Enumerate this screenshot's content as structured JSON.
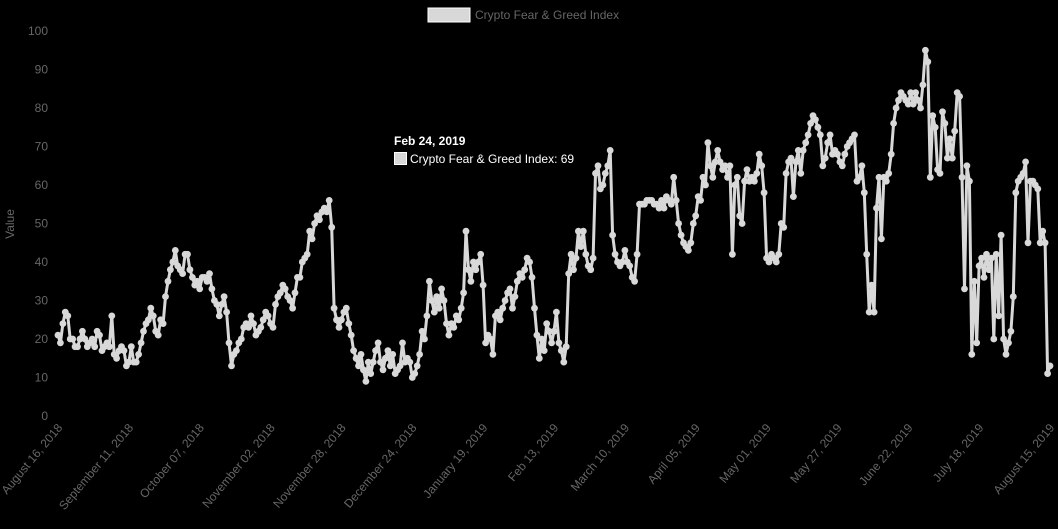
{
  "chart_data": {
    "type": "line",
    "title": "",
    "xlabel": "",
    "ylabel": "Value",
    "ylim": [
      0,
      100
    ],
    "yticks": [
      0,
      10,
      20,
      30,
      40,
      50,
      60,
      70,
      80,
      90,
      100
    ],
    "x_tick_labels": [
      "August 16, 2018",
      "September 11, 2018",
      "October 07, 2018",
      "November 02, 2018",
      "November 28, 2018",
      "December 24, 2018",
      "January 19, 2019",
      "Feb 13, 2019",
      "March 10, 2019",
      "April 05, 2019",
      "May 01, 2019",
      "May 27, 2019",
      "June 22, 2019",
      "July 18, 2019",
      "August 15, 2019"
    ],
    "legend": {
      "position": "top",
      "label": "Crypto Fear & Greed Index"
    },
    "line_color": "#d8d8d8",
    "background": "#000000",
    "grid": false,
    "series": [
      {
        "name": "Crypto Fear & Greed Index",
        "values": [
          21,
          19,
          24,
          27,
          26,
          20,
          20,
          18,
          18,
          20,
          22,
          20,
          18,
          19,
          20,
          18,
          22,
          21,
          17,
          18,
          19,
          18,
          26,
          16,
          15,
          17,
          18,
          17,
          13,
          14,
          18,
          14,
          14,
          16,
          19,
          22,
          24,
          25,
          28,
          26,
          22,
          21,
          25,
          24,
          31,
          35,
          38,
          40,
          43,
          39,
          38,
          37,
          42,
          42,
          38,
          36,
          34,
          35,
          33,
          36,
          36,
          35,
          37,
          33,
          30,
          29,
          26,
          29,
          31,
          27,
          19,
          13,
          16,
          17,
          19,
          20,
          23,
          24,
          23,
          26,
          24,
          21,
          22,
          23,
          25,
          27,
          26,
          24,
          23,
          29,
          31,
          32,
          34,
          33,
          31,
          30,
          28,
          32,
          36,
          36,
          40,
          41,
          42,
          48,
          46,
          50,
          52,
          51,
          53,
          54,
          53,
          56,
          49,
          28,
          25,
          23,
          25,
          27,
          28,
          24,
          21,
          17,
          15,
          13,
          16,
          12,
          9,
          14,
          11,
          14,
          17,
          19,
          14,
          12,
          15,
          17,
          13,
          16,
          11,
          12,
          13,
          19,
          14,
          15,
          14,
          10,
          11,
          13,
          16,
          22,
          20,
          26,
          35,
          30,
          27,
          31,
          28,
          33,
          30,
          24,
          21,
          24,
          23,
          26,
          25,
          28,
          32,
          48,
          38,
          35,
          40,
          38,
          40,
          42,
          34,
          19,
          21,
          20,
          16,
          26,
          27,
          25,
          28,
          30,
          32,
          33,
          28,
          31,
          35,
          37,
          36,
          38,
          41,
          40,
          36,
          28,
          21,
          15,
          20,
          17,
          24,
          22,
          19,
          22,
          27,
          19,
          17,
          14,
          18,
          37,
          42,
          38,
          41,
          48,
          44,
          48,
          42,
          39,
          38,
          41,
          63,
          65,
          59,
          60,
          63,
          65,
          69,
          47,
          42,
          40,
          39,
          40,
          43,
          40,
          39,
          36,
          35,
          42,
          55,
          55,
          55,
          56,
          56,
          56,
          55,
          55,
          54,
          56,
          54,
          57,
          56,
          55,
          62,
          56,
          50,
          47,
          45,
          44,
          43,
          45,
          50,
          52,
          57,
          56,
          62,
          60,
          71,
          65,
          62,
          66,
          69,
          66,
          64,
          65,
          62,
          65,
          42,
          60,
          62,
          52,
          50,
          61,
          64,
          61,
          62,
          61,
          63,
          68,
          65,
          58,
          41,
          40,
          42,
          41,
          40,
          42,
          50,
          49,
          63,
          66,
          67,
          57,
          66,
          69,
          63,
          69,
          71,
          73,
          76,
          78,
          77,
          75,
          73,
          65,
          67,
          71,
          73,
          68,
          69,
          68,
          66,
          65,
          68,
          70,
          71,
          72,
          73,
          61,
          62,
          65,
          58,
          42,
          27,
          34,
          27,
          54,
          62,
          46,
          62,
          61,
          63,
          68,
          76,
          80,
          82,
          84,
          83,
          82,
          81,
          84,
          81,
          84,
          82,
          80,
          86,
          95,
          92,
          62,
          78,
          75,
          64,
          63,
          79,
          76,
          67,
          72,
          67,
          74,
          84,
          83,
          62,
          33,
          65,
          61,
          16,
          35,
          19,
          39,
          41,
          36,
          42,
          38,
          41,
          20,
          42,
          26,
          47,
          20,
          16,
          19,
          22,
          31,
          58,
          61,
          62,
          63,
          66,
          45,
          61,
          61,
          60,
          59,
          45,
          48,
          45,
          11,
          13
        ]
      }
    ]
  },
  "tooltip": {
    "title": "Feb 24, 2019",
    "label": "Crypto Fear & Greed Index: 69"
  }
}
